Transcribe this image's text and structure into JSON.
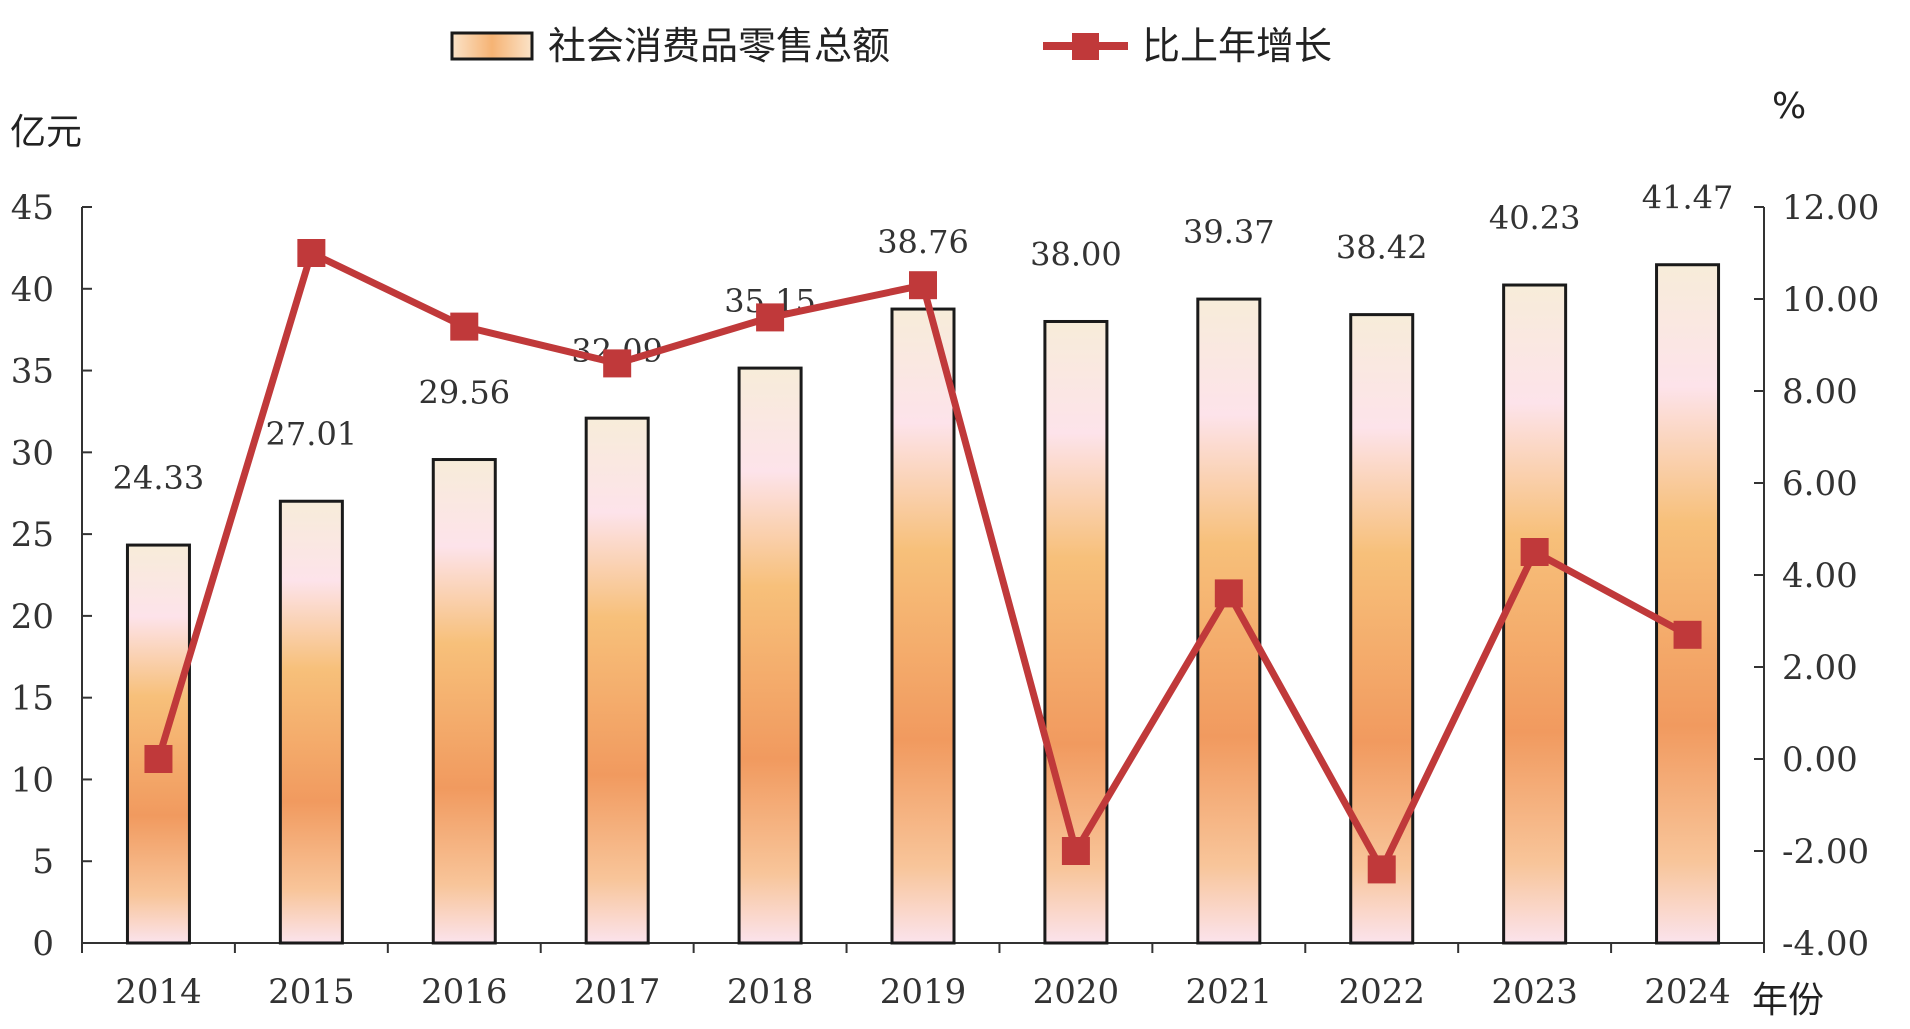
{
  "chart_data": {
    "type": "bar",
    "categories": [
      "2014",
      "2015",
      "2016",
      "2017",
      "2018",
      "2019",
      "2020",
      "2021",
      "2022",
      "2023",
      "2024"
    ],
    "series": [
      {
        "name": "社会消费品零售总额",
        "type": "bar",
        "axis": "left",
        "values": [
          24.33,
          27.01,
          29.56,
          32.09,
          35.15,
          38.76,
          38.0,
          39.37,
          38.42,
          40.23,
          41.47
        ],
        "labels": [
          "24.33",
          "27.01",
          "29.56",
          "32.09",
          "35.15",
          "38.76",
          "38.00",
          "39.37",
          "38.42",
          "40.23",
          "41.47"
        ]
      },
      {
        "name": "比上年增长",
        "type": "line",
        "axis": "right",
        "values": [
          0.0,
          11.0,
          9.4,
          8.6,
          9.6,
          10.3,
          -2.0,
          3.6,
          -2.4,
          4.5,
          2.7
        ]
      }
    ],
    "y_left": {
      "unit": "亿元",
      "range": [
        0,
        45
      ],
      "ticks": [
        "0",
        "5",
        "10",
        "15",
        "20",
        "25",
        "30",
        "35",
        "40",
        "45"
      ]
    },
    "y_right": {
      "unit": "%",
      "range": [
        -4,
        12
      ],
      "ticks": [
        "-4.00",
        "-2.00",
        "0.00",
        "2.00",
        "4.00",
        "6.00",
        "8.00",
        "10.00",
        "12.00"
      ]
    },
    "x_unit": "年份",
    "legend": "top-center",
    "grid": false,
    "colors": {
      "line": "#c0393a",
      "bar_outline": "#1a1a1a",
      "bar_light": "#fde3ea",
      "bar_mid": "#f6a95b",
      "bar_bottom": "#fbe3ec"
    }
  }
}
